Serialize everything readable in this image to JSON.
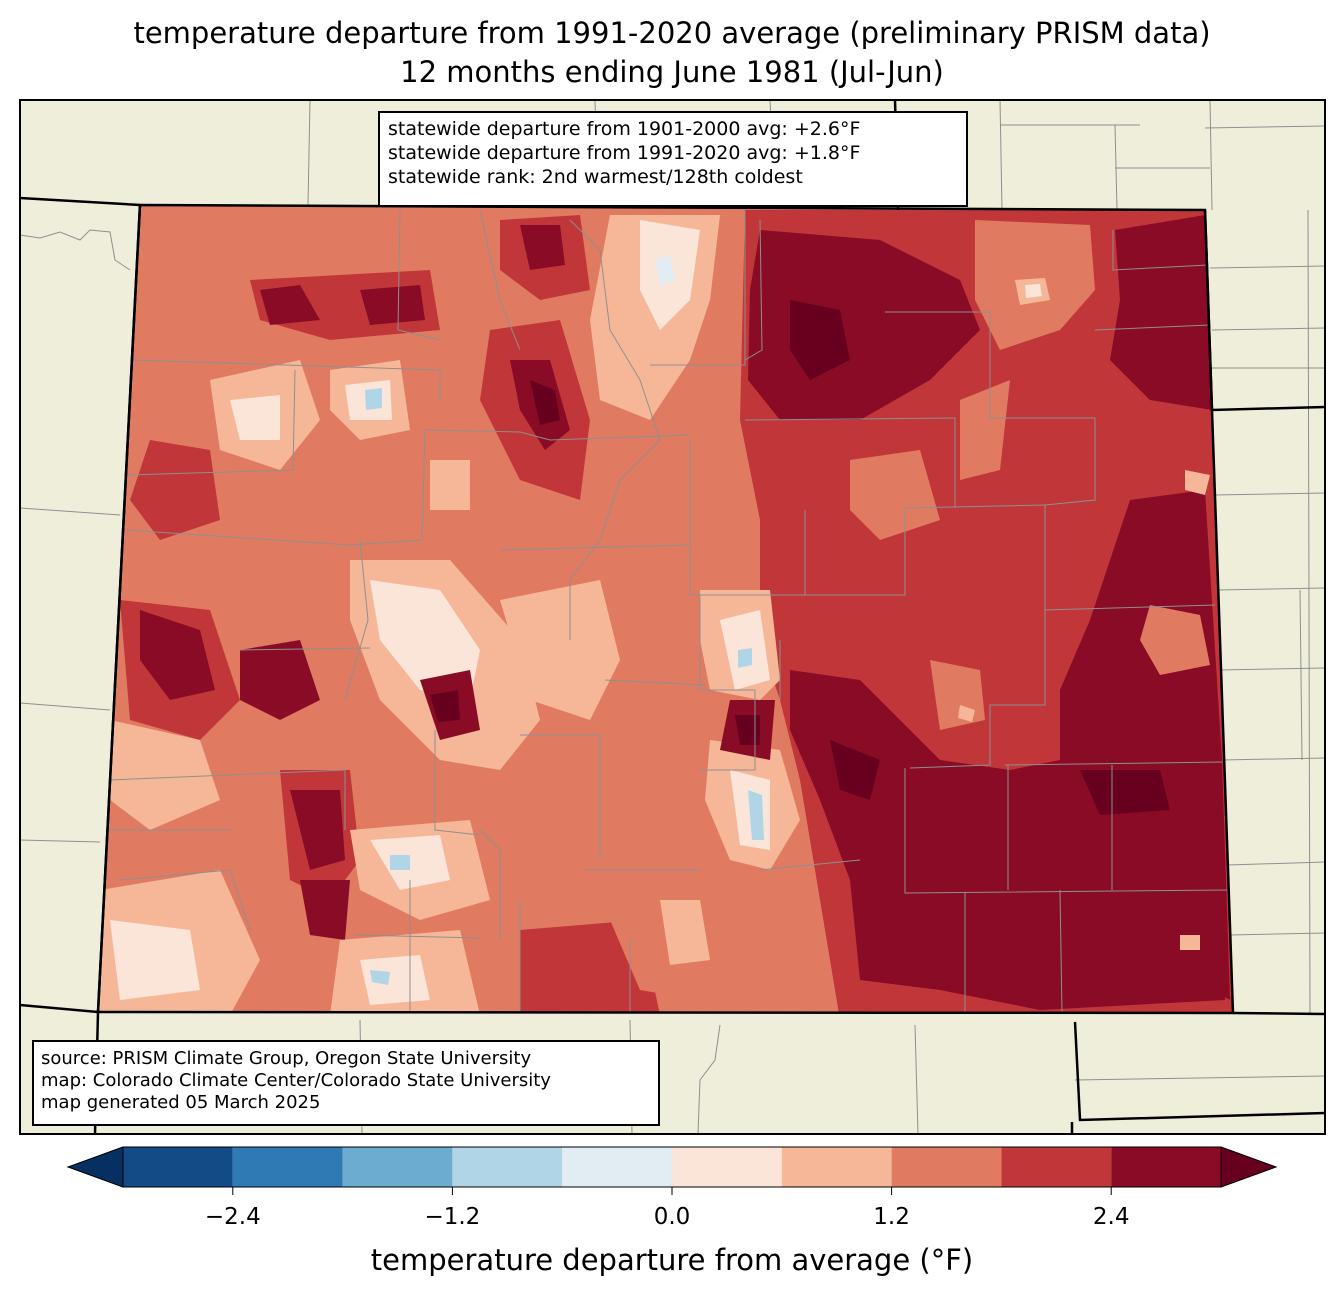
{
  "header": {
    "title_line1": "temperature departure from 1991-2020 average (preliminary PRISM data)",
    "title_line2": "12 months ending June 1981 (Jul-Jun)"
  },
  "stats": {
    "line1": "statewide departure from 1901-2000 avg: +2.6°F",
    "line2": "statewide departure from 1991-2020 avg: +1.8°F",
    "line3": "statewide rank: 2nd warmest/128th coldest"
  },
  "source": {
    "line1": "source: PRISM Climate Group, Oregon State University",
    "line2": "map: Colorado Climate Center/Colorado State University",
    "line3": "map generated 05 March 2025"
  },
  "colorbar": {
    "label": "temperature departure from average (°F)",
    "bins": [
      -3.0,
      -2.4,
      -1.8,
      -1.2,
      -0.6,
      0.0,
      0.6,
      1.2,
      1.8,
      2.4,
      3.0
    ],
    "ticks": [
      {
        "value": -2.4,
        "label": "−2.4"
      },
      {
        "value": -1.2,
        "label": "−1.2"
      },
      {
        "value": 0.0,
        "label": "0.0"
      },
      {
        "value": 1.2,
        "label": "1.2"
      },
      {
        "value": 2.4,
        "label": "2.4"
      }
    ],
    "colors": [
      "#134b87",
      "#2f79b5",
      "#6bacd0",
      "#b0d5e6",
      "#e2edf3",
      "#fbe5d8",
      "#f6b799",
      "#e07b62",
      "#c13639",
      "#8a0b25"
    ],
    "under_color": "#053061",
    "over_color": "#67001f"
  },
  "map": {
    "land_color": "#efeedb",
    "region": "Colorado"
  }
}
